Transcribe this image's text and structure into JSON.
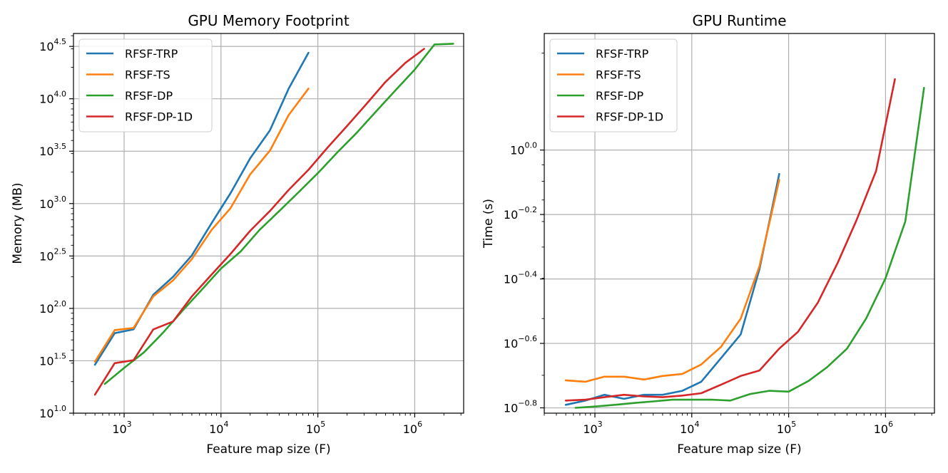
{
  "chart_data": [
    {
      "type": "line",
      "title": "GPU Memory Footprint",
      "xlabel": "Feature map size (F)",
      "ylabel": "Memory (MB)",
      "xscale": "log",
      "yscale": "log",
      "xlim": [
        300,
        3200000
      ],
      "ylim": [
        10,
        42000
      ],
      "grid": true,
      "legend_position": "upper-left",
      "x_ticks": [
        {
          "value": 1000,
          "base": "10",
          "exp": "3"
        },
        {
          "value": 10000,
          "base": "10",
          "exp": "4"
        },
        {
          "value": 100000,
          "base": "10",
          "exp": "5"
        },
        {
          "value": 1000000,
          "base": "10",
          "exp": "6"
        }
      ],
      "y_ticks": [
        {
          "value": 10,
          "base": "10",
          "exp": "1.0"
        },
        {
          "value": 31.62,
          "base": "10",
          "exp": "1.5"
        },
        {
          "value": 100,
          "base": "10",
          "exp": "2.0"
        },
        {
          "value": 316.2,
          "base": "10",
          "exp": "2.5"
        },
        {
          "value": 1000,
          "base": "10",
          "exp": "3.0"
        },
        {
          "value": 3162,
          "base": "10",
          "exp": "3.5"
        },
        {
          "value": 10000,
          "base": "10",
          "exp": "4.0"
        },
        {
          "value": 31623,
          "base": "10",
          "exp": "4.5"
        }
      ],
      "series": [
        {
          "name": "RFSF-TRP",
          "color": "#1f77b4",
          "x": [
            500,
            800,
            1250,
            2000,
            3200,
            5000,
            8000,
            12500,
            20000,
            32000,
            50000,
            80000
          ],
          "y": [
            29,
            58,
            63,
            135,
            200,
            320,
            650,
            1250,
            2700,
            5000,
            12500,
            27500
          ]
        },
        {
          "name": "RFSF-TS",
          "color": "#ff7f0e",
          "x": [
            500,
            800,
            1250,
            2000,
            3200,
            5000,
            8000,
            12500,
            20000,
            32000,
            50000,
            80000
          ],
          "y": [
            31,
            62,
            65,
            130,
            185,
            295,
            560,
            900,
            1900,
            3200,
            7000,
            12500
          ]
        },
        {
          "name": "RFSF-DP",
          "color": "#2ca02c",
          "x": [
            630,
            1000,
            1600,
            2500,
            4000,
            6300,
            10000,
            16000,
            25000,
            40000,
            63000,
            100000,
            160000,
            250000,
            400000,
            630000,
            1000000,
            1600000,
            2500000
          ],
          "y": [
            19,
            27,
            38,
            58,
            95,
            150,
            240,
            350,
            560,
            850,
            1280,
            1950,
            3100,
            4700,
            7600,
            12000,
            19000,
            33000,
            33500
          ]
        },
        {
          "name": "RFSF-DP-1D",
          "color": "#d62728",
          "x": [
            500,
            800,
            1250,
            2000,
            3200,
            5000,
            8000,
            12500,
            20000,
            32000,
            50000,
            80000,
            125000,
            200000,
            320000,
            500000,
            800000,
            1250000
          ],
          "y": [
            15,
            30,
            32,
            63,
            75,
            130,
            210,
            330,
            550,
            850,
            1350,
            2100,
            3400,
            5500,
            9000,
            14500,
            22000,
            30000
          ]
        }
      ]
    },
    {
      "type": "line",
      "title": "GPU Runtime",
      "xlabel": "Feature map size (F)",
      "ylabel": "Time (s)",
      "xscale": "log",
      "yscale": "log",
      "xlim": [
        300,
        3200000
      ],
      "ylim": [
        0.1526,
        2.3
      ],
      "grid": true,
      "legend_position": "upper-left",
      "x_ticks": [
        {
          "value": 1000,
          "base": "10",
          "exp": "3"
        },
        {
          "value": 10000,
          "base": "10",
          "exp": "4"
        },
        {
          "value": 100000,
          "base": "10",
          "exp": "5"
        },
        {
          "value": 1000000,
          "base": "10",
          "exp": "6"
        }
      ],
      "y_ticks": [
        {
          "value": 0.1585,
          "base": "10",
          "exp": "−0.8"
        },
        {
          "value": 0.2512,
          "base": "10",
          "exp": "−0.6"
        },
        {
          "value": 0.3981,
          "base": "10",
          "exp": "−0.4"
        },
        {
          "value": 0.631,
          "base": "10",
          "exp": "−0.2"
        },
        {
          "value": 1.0,
          "base": "10",
          "exp": "0.0"
        }
      ],
      "series": [
        {
          "name": "RFSF-TRP",
          "color": "#1f77b4",
          "x": [
            500,
            800,
            1250,
            2000,
            3200,
            5000,
            8000,
            12500,
            20000,
            32000,
            50000,
            80000
          ],
          "y": [
            0.162,
            0.167,
            0.174,
            0.169,
            0.174,
            0.174,
            0.179,
            0.191,
            0.226,
            0.268,
            0.427,
            0.843
          ]
        },
        {
          "name": "RFSF-TS",
          "color": "#ff7f0e",
          "x": [
            500,
            800,
            1250,
            2000,
            3200,
            5000,
            8000,
            12500,
            20000,
            32000,
            50000,
            80000
          ],
          "y": [
            0.193,
            0.191,
            0.198,
            0.198,
            0.194,
            0.199,
            0.202,
            0.216,
            0.245,
            0.3,
            0.436,
            0.808
          ]
        },
        {
          "name": "RFSF-DP",
          "color": "#2ca02c",
          "x": [
            630,
            1000,
            1600,
            2500,
            4000,
            6300,
            10000,
            16000,
            25000,
            40000,
            63000,
            100000,
            160000,
            250000,
            400000,
            630000,
            1000000,
            1600000,
            2500000
          ],
          "y": [
            0.1585,
            0.16,
            0.162,
            0.164,
            0.166,
            0.168,
            0.168,
            0.168,
            0.167,
            0.175,
            0.179,
            0.178,
            0.192,
            0.212,
            0.242,
            0.3,
            0.4,
            0.6,
            1.56
          ]
        },
        {
          "name": "RFSF-DP-1D",
          "color": "#d62728",
          "x": [
            500,
            800,
            1250,
            2000,
            3200,
            5000,
            8000,
            12500,
            20000,
            32000,
            50000,
            80000,
            125000,
            200000,
            320000,
            500000,
            800000,
            1250000
          ],
          "y": [
            0.167,
            0.168,
            0.171,
            0.174,
            0.172,
            0.171,
            0.173,
            0.176,
            0.187,
            0.199,
            0.207,
            0.242,
            0.273,
            0.336,
            0.446,
            0.604,
            0.861,
            1.66
          ]
        }
      ]
    }
  ]
}
